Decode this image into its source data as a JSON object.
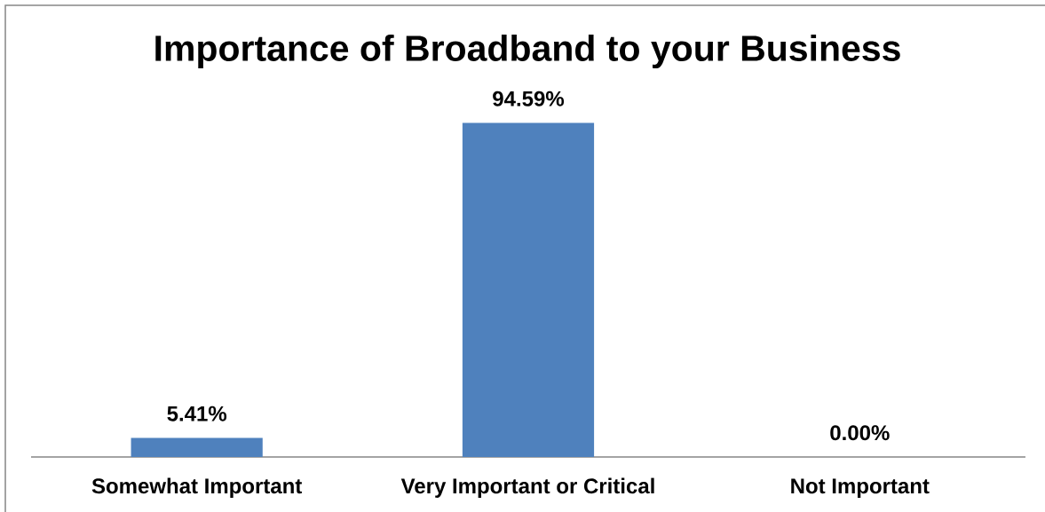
{
  "chart_data": {
    "type": "bar",
    "title": "Importance of Broadband to your Business",
    "categories": [
      "Somewhat Important",
      "Very Important or Critical",
      "Not Important"
    ],
    "values": [
      5.41,
      94.59,
      0.0
    ],
    "value_labels": [
      "5.41%",
      "94.59%",
      "0.00%"
    ],
    "color": "#4f81bd"
  }
}
